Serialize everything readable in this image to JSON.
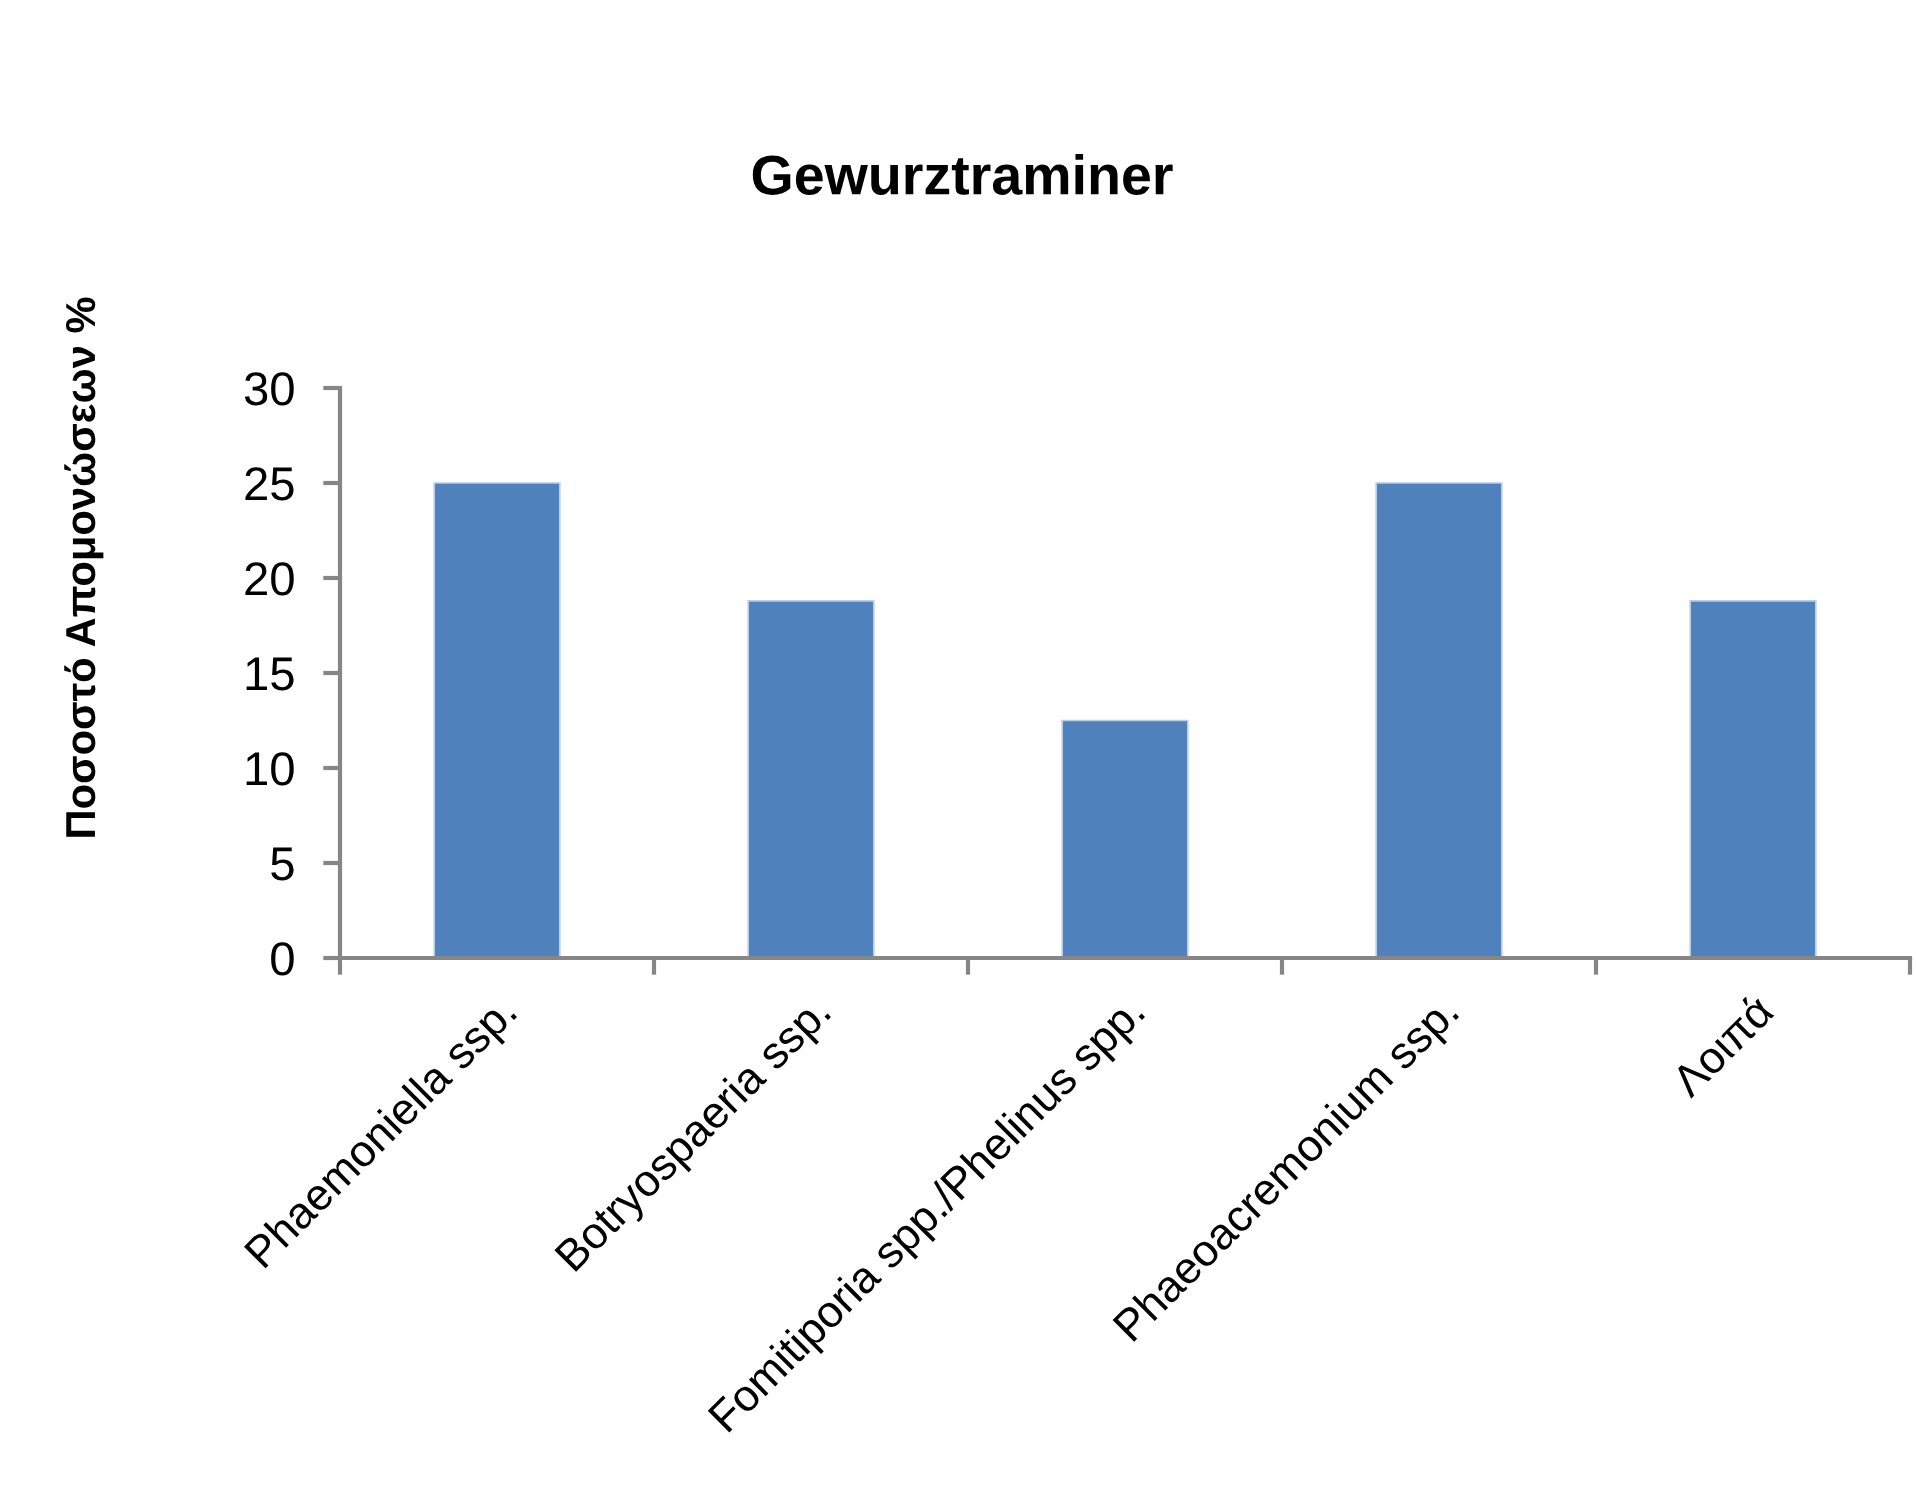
{
  "chart_data": {
    "type": "bar",
    "title": "Gewurztraminer",
    "ylabel": "Ποσοστό Απομονώσεων %",
    "categories": [
      "Phaemoniella ssp.",
      "Botryospaeria ssp.",
      "Fomitiporia spp./Phelinus spp.",
      "Phaeoacremonium ssp.",
      "Λοιπά"
    ],
    "values": [
      25,
      18.8,
      12.5,
      25,
      18.8
    ],
    "color": "#4f81bd",
    "ylim": [
      0,
      30
    ],
    "yticks": [
      0,
      5,
      10,
      15,
      20,
      25,
      30
    ]
  }
}
